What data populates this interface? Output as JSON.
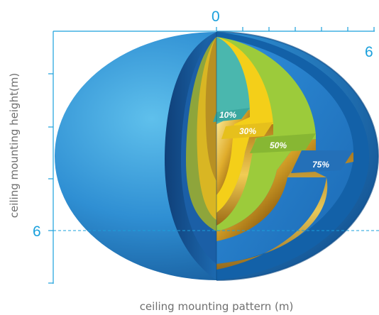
{
  "axes": {
    "x_zero": "0",
    "x_max": "6",
    "y_max": "6",
    "x_label": "ceiling mounting pattern (m)",
    "y_label": "ceiling mounting height(m)"
  },
  "zones": [
    {
      "label": "10%",
      "color": "#4ab7ae"
    },
    {
      "label": "30%",
      "color": "#f4cf19"
    },
    {
      "label": "50%",
      "color": "#9ccb3b"
    },
    {
      "label": "75%",
      "color": "#2a86cf"
    }
  ],
  "colors": {
    "axis": "#1aa0dc",
    "outer_shell": "#1f6fb4",
    "inner_shell": "#15569a",
    "gold": "#d4a02a"
  }
}
